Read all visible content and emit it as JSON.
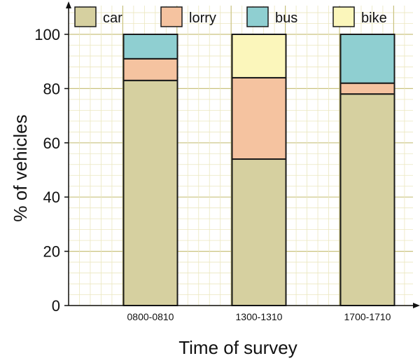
{
  "chart_data": {
    "type": "bar",
    "stacked": true,
    "xlabel": "Time of survey",
    "ylabel": "% of vehicles",
    "ylim": [
      0,
      100
    ],
    "yticks": [
      0,
      20,
      40,
      60,
      80,
      100
    ],
    "grid": true,
    "legend_position": "top",
    "categories": [
      "0800-0810",
      "1300-1310",
      "1700-1710"
    ],
    "series": [
      {
        "name": "car",
        "color": "#d6d0a0",
        "values": [
          83,
          54,
          78
        ]
      },
      {
        "name": "lorry",
        "color": "#f5c3a0",
        "values": [
          8,
          30,
          4
        ]
      },
      {
        "name": "bus",
        "color": "#8fcfd1",
        "values": [
          9,
          0,
          18
        ]
      },
      {
        "name": "bike",
        "color": "#fbf6bb",
        "values": [
          0,
          16,
          0
        ]
      }
    ]
  }
}
